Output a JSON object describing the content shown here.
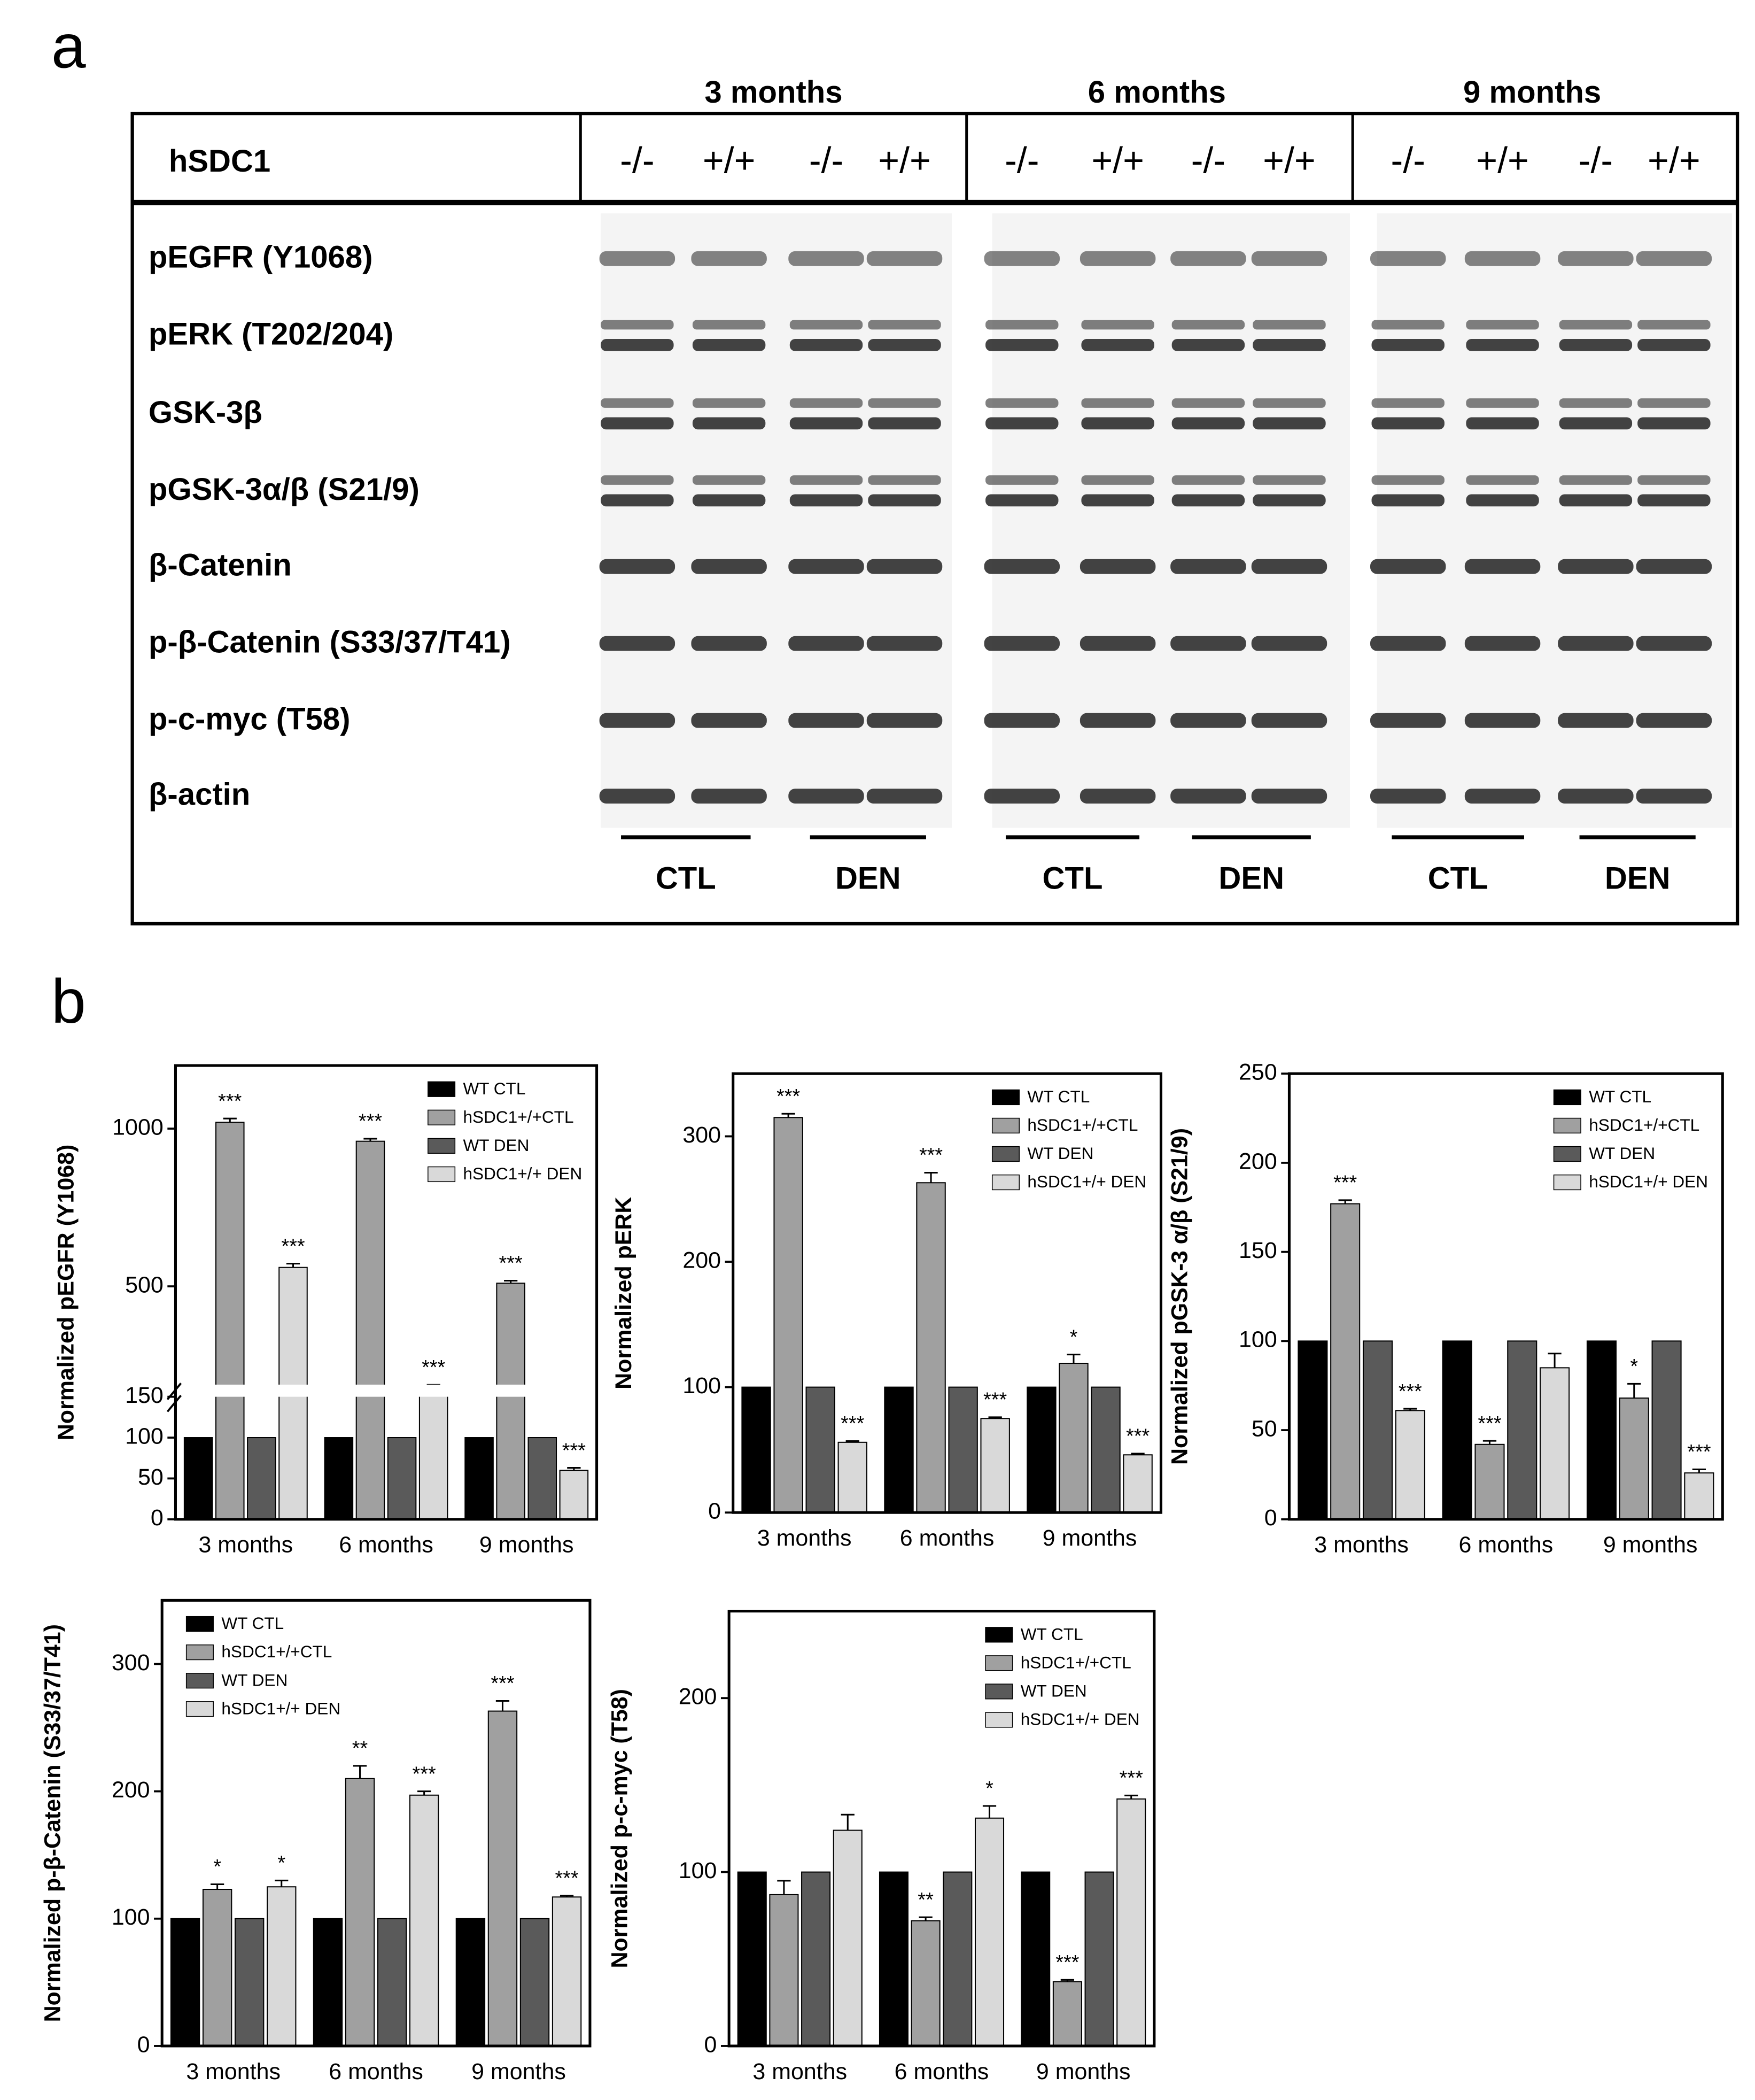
{
  "panel_labels": [
    "a",
    "b"
  ],
  "blot": {
    "months": [
      "3 months",
      "6 months",
      "9 months"
    ],
    "gene_label": "hSDC1",
    "genotypes": [
      "-/-",
      "+/+",
      "-/-",
      "+/+",
      "-/-",
      "+/+",
      "-/-",
      "+/+",
      "-/-",
      "+/+",
      "-/-",
      "+/+"
    ],
    "proteins": [
      "pEGFR (Y1068)",
      "pERK (T202/204)",
      "GSK-3β",
      "pGSK-3α/β (S21/9)",
      "β-Catenin",
      "p-β-Catenin (S33/37/T41)",
      "p-c-myc (T58)",
      "β-actin"
    ],
    "treatments": [
      "CTL",
      "DEN",
      "CTL",
      "DEN",
      "CTL",
      "DEN"
    ]
  },
  "chart_data": [
    {
      "type": "bar",
      "ylabel": "Normalized pEGFR (Y1068)",
      "categories": [
        "3 months",
        "6 months",
        "9 months"
      ],
      "ylim": [
        0,
        1200
      ],
      "ybreak": 150,
      "yticks": [
        0,
        50,
        100,
        150,
        500,
        1000
      ],
      "legend": "upper right",
      "series": [
        {
          "name": "WT CTL",
          "color": "#000000",
          "values": [
            100,
            100,
            100
          ]
        },
        {
          "name": "hSDC1+/+CTL",
          "color": "#a0a0a0",
          "values": [
            1020,
            960,
            510
          ],
          "errors": [
            12,
            8,
            8
          ],
          "significance": [
            "***",
            "***",
            "***"
          ]
        },
        {
          "name": "WT DEN",
          "color": "#5a5a5a",
          "values": [
            100,
            100,
            100
          ]
        },
        {
          "name": "hSDC1+/+ DEN",
          "color": "#d9d9d9",
          "values": [
            560,
            180,
            60
          ],
          "errors": [
            12,
            8,
            3
          ],
          "significance": [
            "***",
            "***",
            "***"
          ]
        }
      ]
    },
    {
      "type": "bar",
      "ylabel": "Normalized pERK",
      "categories": [
        "3 months",
        "6 months",
        "9 months"
      ],
      "ylim": [
        0,
        350
      ],
      "yticks": [
        0,
        100,
        200,
        300
      ],
      "legend": "upper right",
      "series": [
        {
          "name": "WT CTL",
          "color": "#000000",
          "values": [
            100,
            100,
            100
          ]
        },
        {
          "name": "hSDC1+/+CTL",
          "color": "#a0a0a0",
          "values": [
            315,
            263,
            119
          ],
          "errors": [
            3,
            8,
            7
          ],
          "significance": [
            "***",
            "***",
            "*"
          ]
        },
        {
          "name": "WT DEN",
          "color": "#5a5a5a",
          "values": [
            100,
            100,
            100
          ]
        },
        {
          "name": "hSDC1+/+ DEN",
          "color": "#d9d9d9",
          "values": [
            56,
            75,
            46
          ],
          "errors": [
            1,
            1,
            1
          ],
          "significance": [
            "***",
            "***",
            "***"
          ]
        }
      ]
    },
    {
      "type": "bar",
      "ylabel": "Normalized pGSK-3 α/β (S21/9)",
      "categories": [
        "3 months",
        "6 months",
        "9 months"
      ],
      "ylim": [
        0,
        250
      ],
      "yticks": [
        0,
        50,
        100,
        150,
        200,
        250
      ],
      "legend": "upper right",
      "series": [
        {
          "name": "WT CTL",
          "color": "#000000",
          "values": [
            100,
            100,
            100
          ]
        },
        {
          "name": "hSDC1+/+CTL",
          "color": "#a0a0a0",
          "values": [
            177,
            42,
            68
          ],
          "errors": [
            2,
            2,
            8
          ],
          "significance": [
            "***",
            "***",
            "*"
          ]
        },
        {
          "name": "WT DEN",
          "color": "#5a5a5a",
          "values": [
            100,
            100,
            100
          ]
        },
        {
          "name": "hSDC1+/+ DEN",
          "color": "#d9d9d9",
          "values": [
            61,
            85,
            26
          ],
          "errors": [
            1,
            8,
            2
          ],
          "significance": [
            "***",
            null,
            "***"
          ]
        }
      ]
    },
    {
      "type": "bar",
      "ylabel": "Normalized p-β-Catenin (S33/37/T41)",
      "categories": [
        "3 months",
        "6 months",
        "9 months"
      ],
      "ylim": [
        0,
        350
      ],
      "yticks": [
        0,
        100,
        200,
        300
      ],
      "legend": "upper left",
      "series": [
        {
          "name": "WT CTL",
          "color": "#000000",
          "values": [
            100,
            100,
            100
          ]
        },
        {
          "name": "hSDC1+/+CTL",
          "color": "#a0a0a0",
          "values": [
            123,
            210,
            263
          ],
          "errors": [
            4,
            10,
            8
          ],
          "significance": [
            "*",
            "**",
            "***"
          ]
        },
        {
          "name": "WT DEN",
          "color": "#5a5a5a",
          "values": [
            100,
            100,
            100
          ]
        },
        {
          "name": "hSDC1+/+ DEN",
          "color": "#d9d9d9",
          "values": [
            125,
            197,
            117
          ],
          "errors": [
            5,
            3,
            1
          ],
          "significance": [
            "*",
            "***",
            "***"
          ]
        }
      ]
    },
    {
      "type": "bar",
      "ylabel": "Normalized p-c-myc (T58)",
      "categories": [
        "3 months",
        "6 months",
        "9 months"
      ],
      "ylim": [
        0,
        250
      ],
      "yticks": [
        0,
        100,
        200
      ],
      "legend": "upper right",
      "series": [
        {
          "name": "WT CTL",
          "color": "#000000",
          "values": [
            100,
            100,
            100
          ]
        },
        {
          "name": "hSDC1+/+CTL",
          "color": "#a0a0a0",
          "values": [
            87,
            72,
            37
          ],
          "errors": [
            8,
            2,
            1
          ],
          "significance": [
            null,
            "**",
            "***"
          ]
        },
        {
          "name": "WT DEN",
          "color": "#5a5a5a",
          "values": [
            100,
            100,
            100
          ]
        },
        {
          "name": "hSDC1+/+ DEN",
          "color": "#d9d9d9",
          "values": [
            124,
            131,
            142
          ],
          "errors": [
            9,
            7,
            2
          ],
          "significance": [
            null,
            "*",
            "***"
          ]
        }
      ]
    }
  ]
}
